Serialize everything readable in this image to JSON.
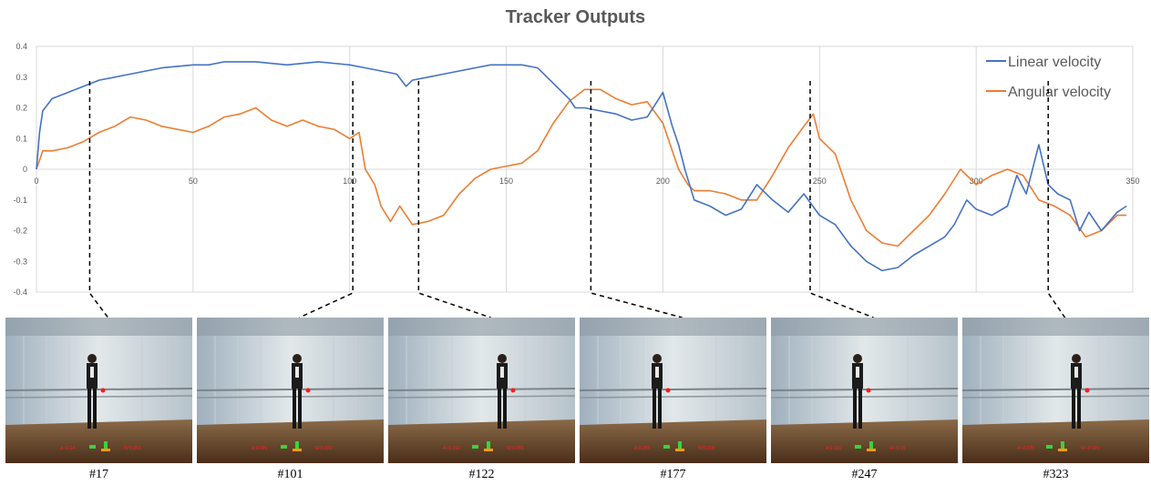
{
  "chart_data": {
    "type": "line",
    "title": "Tracker Outputs",
    "xlabel": "",
    "ylabel": "",
    "xlim": [
      0,
      350
    ],
    "ylim": [
      -0.4,
      0.4
    ],
    "x_ticks": [
      "0",
      "50",
      "100",
      "150",
      "200",
      "250",
      "300",
      "350"
    ],
    "y_ticks": [
      "0.4",
      "0.3",
      "0.2",
      "0.1",
      "0",
      "-0.1",
      "-0.2",
      "-0.3",
      "-0.4"
    ],
    "grid": "vertical",
    "legend_position": "top-right",
    "series": [
      {
        "name": "Linear velocity",
        "color": "#4472C4",
        "points": [
          [
            0,
            0.0
          ],
          [
            1,
            0.12
          ],
          [
            2,
            0.19
          ],
          [
            5,
            0.23
          ],
          [
            10,
            0.25
          ],
          [
            15,
            0.27
          ],
          [
            20,
            0.29
          ],
          [
            25,
            0.3
          ],
          [
            30,
            0.31
          ],
          [
            40,
            0.33
          ],
          [
            50,
            0.34
          ],
          [
            55,
            0.34
          ],
          [
            60,
            0.35
          ],
          [
            70,
            0.35
          ],
          [
            80,
            0.34
          ],
          [
            90,
            0.35
          ],
          [
            100,
            0.34
          ],
          [
            105,
            0.33
          ],
          [
            110,
            0.32
          ],
          [
            115,
            0.31
          ],
          [
            118,
            0.27
          ],
          [
            120,
            0.29
          ],
          [
            125,
            0.3
          ],
          [
            130,
            0.31
          ],
          [
            135,
            0.32
          ],
          [
            140,
            0.33
          ],
          [
            145,
            0.34
          ],
          [
            150,
            0.34
          ],
          [
            155,
            0.34
          ],
          [
            160,
            0.33
          ],
          [
            163,
            0.3
          ],
          [
            167,
            0.26
          ],
          [
            170,
            0.23
          ],
          [
            172,
            0.2
          ],
          [
            175,
            0.2
          ],
          [
            180,
            0.19
          ],
          [
            185,
            0.18
          ],
          [
            190,
            0.16
          ],
          [
            195,
            0.17
          ],
          [
            200,
            0.25
          ],
          [
            203,
            0.14
          ],
          [
            205,
            0.08
          ],
          [
            207,
            0.0
          ],
          [
            210,
            -0.1
          ],
          [
            215,
            -0.12
          ],
          [
            220,
            -0.15
          ],
          [
            225,
            -0.13
          ],
          [
            230,
            -0.05
          ],
          [
            235,
            -0.1
          ],
          [
            240,
            -0.14
          ],
          [
            245,
            -0.08
          ],
          [
            250,
            -0.15
          ],
          [
            255,
            -0.18
          ],
          [
            260,
            -0.25
          ],
          [
            265,
            -0.3
          ],
          [
            270,
            -0.33
          ],
          [
            275,
            -0.32
          ],
          [
            280,
            -0.28
          ],
          [
            285,
            -0.25
          ],
          [
            290,
            -0.22
          ],
          [
            293,
            -0.18
          ],
          [
            297,
            -0.1
          ],
          [
            300,
            -0.13
          ],
          [
            305,
            -0.15
          ],
          [
            310,
            -0.12
          ],
          [
            313,
            -0.02
          ],
          [
            316,
            -0.08
          ],
          [
            320,
            0.08
          ],
          [
            323,
            -0.05
          ],
          [
            326,
            -0.08
          ],
          [
            330,
            -0.1
          ],
          [
            333,
            -0.2
          ],
          [
            336,
            -0.14
          ],
          [
            340,
            -0.2
          ],
          [
            345,
            -0.14
          ],
          [
            348,
            -0.12
          ]
        ]
      },
      {
        "name": "Angular velocity",
        "color": "#ED7D31",
        "points": [
          [
            0,
            0.0
          ],
          [
            2,
            0.06
          ],
          [
            5,
            0.06
          ],
          [
            10,
            0.07
          ],
          [
            15,
            0.09
          ],
          [
            20,
            0.12
          ],
          [
            25,
            0.14
          ],
          [
            30,
            0.17
          ],
          [
            35,
            0.16
          ],
          [
            40,
            0.14
          ],
          [
            50,
            0.12
          ],
          [
            55,
            0.14
          ],
          [
            60,
            0.17
          ],
          [
            65,
            0.18
          ],
          [
            70,
            0.2
          ],
          [
            75,
            0.16
          ],
          [
            80,
            0.14
          ],
          [
            85,
            0.16
          ],
          [
            90,
            0.14
          ],
          [
            95,
            0.13
          ],
          [
            100,
            0.1
          ],
          [
            103,
            0.12
          ],
          [
            105,
            0.0
          ],
          [
            108,
            -0.05
          ],
          [
            110,
            -0.12
          ],
          [
            113,
            -0.17
          ],
          [
            116,
            -0.12
          ],
          [
            120,
            -0.18
          ],
          [
            125,
            -0.17
          ],
          [
            130,
            -0.15
          ],
          [
            135,
            -0.08
          ],
          [
            140,
            -0.03
          ],
          [
            145,
            0.0
          ],
          [
            150,
            0.01
          ],
          [
            155,
            0.02
          ],
          [
            160,
            0.06
          ],
          [
            165,
            0.15
          ],
          [
            170,
            0.22
          ],
          [
            175,
            0.26
          ],
          [
            180,
            0.26
          ],
          [
            185,
            0.23
          ],
          [
            190,
            0.21
          ],
          [
            195,
            0.22
          ],
          [
            200,
            0.15
          ],
          [
            205,
            0.0
          ],
          [
            208,
            -0.05
          ],
          [
            210,
            -0.07
          ],
          [
            215,
            -0.07
          ],
          [
            220,
            -0.08
          ],
          [
            225,
            -0.1
          ],
          [
            230,
            -0.1
          ],
          [
            235,
            -0.02
          ],
          [
            240,
            0.07
          ],
          [
            245,
            0.14
          ],
          [
            248,
            0.18
          ],
          [
            250,
            0.1
          ],
          [
            255,
            0.05
          ],
          [
            260,
            -0.1
          ],
          [
            265,
            -0.2
          ],
          [
            270,
            -0.24
          ],
          [
            275,
            -0.25
          ],
          [
            280,
            -0.2
          ],
          [
            285,
            -0.15
          ],
          [
            290,
            -0.08
          ],
          [
            295,
            0.0
          ],
          [
            300,
            -0.05
          ],
          [
            305,
            -0.02
          ],
          [
            310,
            0.0
          ],
          [
            315,
            -0.02
          ],
          [
            320,
            -0.1
          ],
          [
            325,
            -0.12
          ],
          [
            330,
            -0.15
          ],
          [
            335,
            -0.22
          ],
          [
            340,
            -0.2
          ],
          [
            345,
            -0.15
          ],
          [
            348,
            -0.15
          ]
        ]
      }
    ]
  },
  "frames": [
    {
      "label": "#17",
      "x": 17
    },
    {
      "label": "#101",
      "x": 101
    },
    {
      "label": "#122",
      "x": 122
    },
    {
      "label": "#177",
      "x": 177
    },
    {
      "label": "#247",
      "x": 247
    },
    {
      "label": "#323",
      "x": 323
    }
  ],
  "frame_hud": [
    {
      "left": "A:-0.14",
      "right": "W:0.253"
    },
    {
      "left": "A:0.096",
      "right": "W:0.333"
    },
    {
      "left": "A:-0.192",
      "right": "W:0.286"
    },
    {
      "left": "A:0.255",
      "right": "W:0.206"
    },
    {
      "left": "A:0.161",
      "right": "W:-0.15"
    },
    {
      "left": "A:-0.225",
      "right": "W:-0.199"
    }
  ]
}
